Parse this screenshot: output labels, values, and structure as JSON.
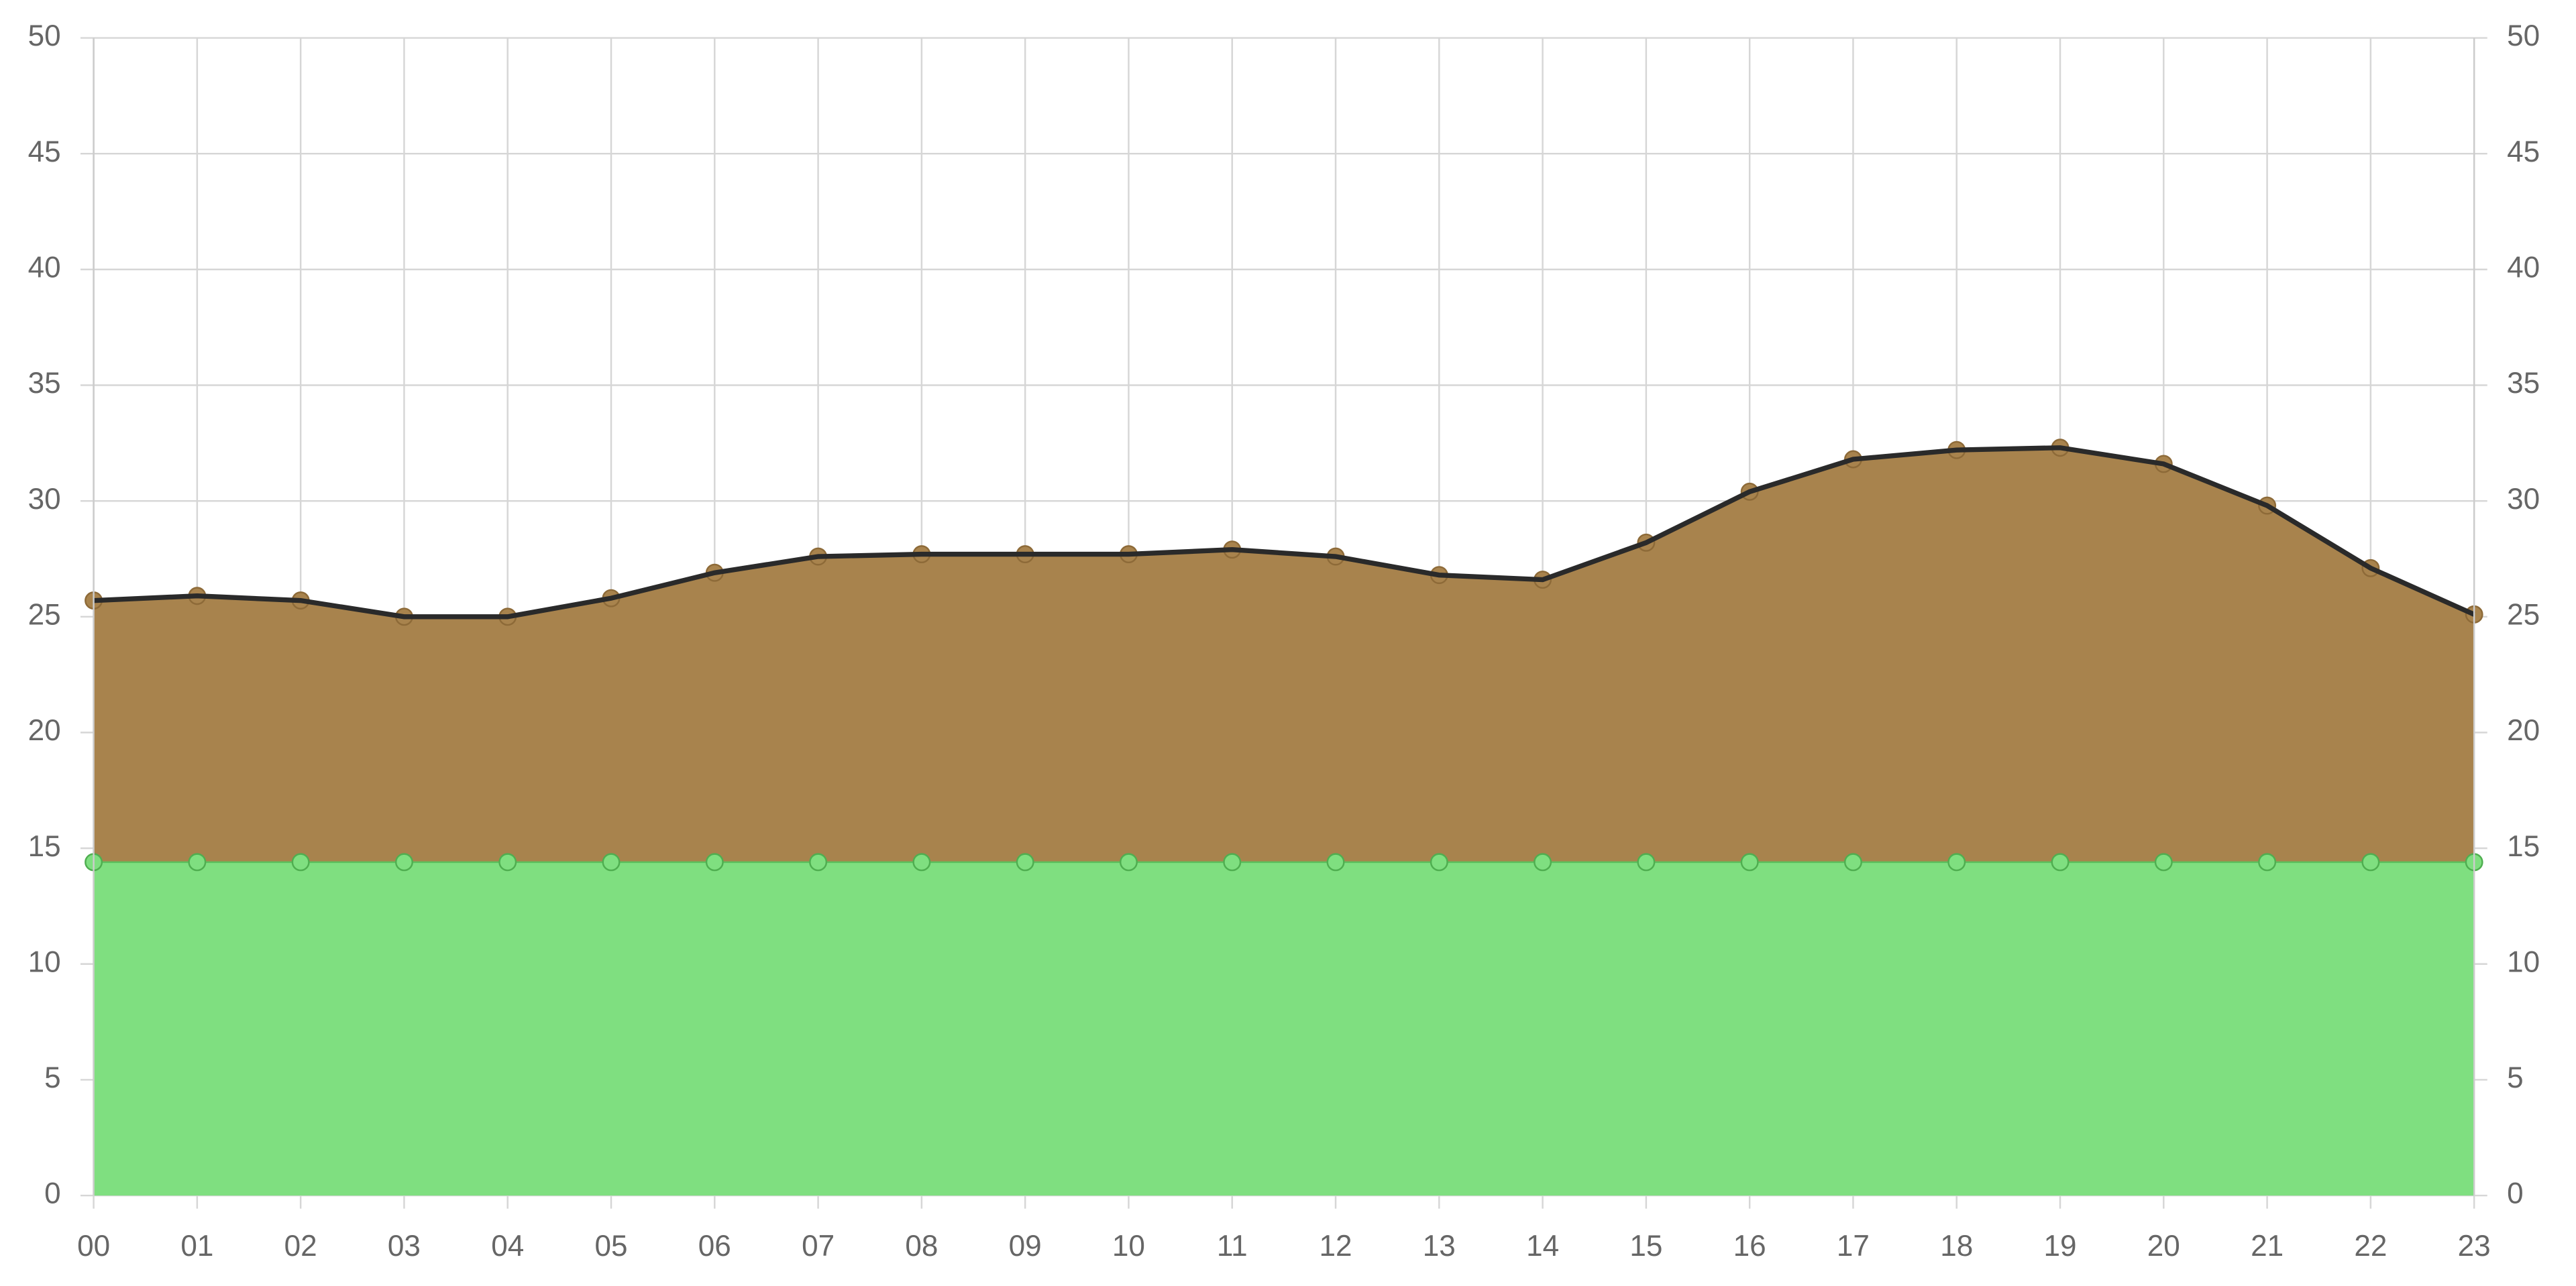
{
  "chart_data": {
    "type": "area",
    "categories": [
      "00",
      "01",
      "02",
      "03",
      "04",
      "05",
      "06",
      "07",
      "08",
      "09",
      "10",
      "11",
      "12",
      "13",
      "14",
      "15",
      "16",
      "17",
      "18",
      "19",
      "20",
      "21",
      "22",
      "23"
    ],
    "series": [
      {
        "color": "#7fdf80",
        "values": [
          14.4,
          14.4,
          14.4,
          14.4,
          14.4,
          14.4,
          14.4,
          14.4,
          14.4,
          14.4,
          14.4,
          14.4,
          14.4,
          14.4,
          14.4,
          14.4,
          14.4,
          14.4,
          14.4,
          14.4,
          14.4,
          14.4,
          14.4,
          14.4
        ]
      },
      {
        "color": "#a8834d",
        "line_color": "#2a2a2a",
        "values": [
          25.7,
          25.9,
          25.7,
          25.0,
          25.0,
          25.8,
          26.9,
          27.6,
          27.7,
          27.7,
          27.7,
          27.9,
          27.6,
          26.8,
          26.6,
          28.2,
          30.4,
          31.8,
          32.2,
          32.3,
          31.6,
          29.8,
          27.1,
          25.1
        ]
      }
    ],
    "ylim": [
      0,
      50
    ],
    "yticks": [
      0,
      5,
      10,
      15,
      20,
      25,
      30,
      35,
      40,
      45,
      50
    ],
    "y2lim": [
      0,
      50
    ],
    "y2ticks": [
      0,
      5,
      10,
      15,
      20,
      25,
      30,
      35,
      40,
      45,
      50
    ],
    "grid": true
  }
}
